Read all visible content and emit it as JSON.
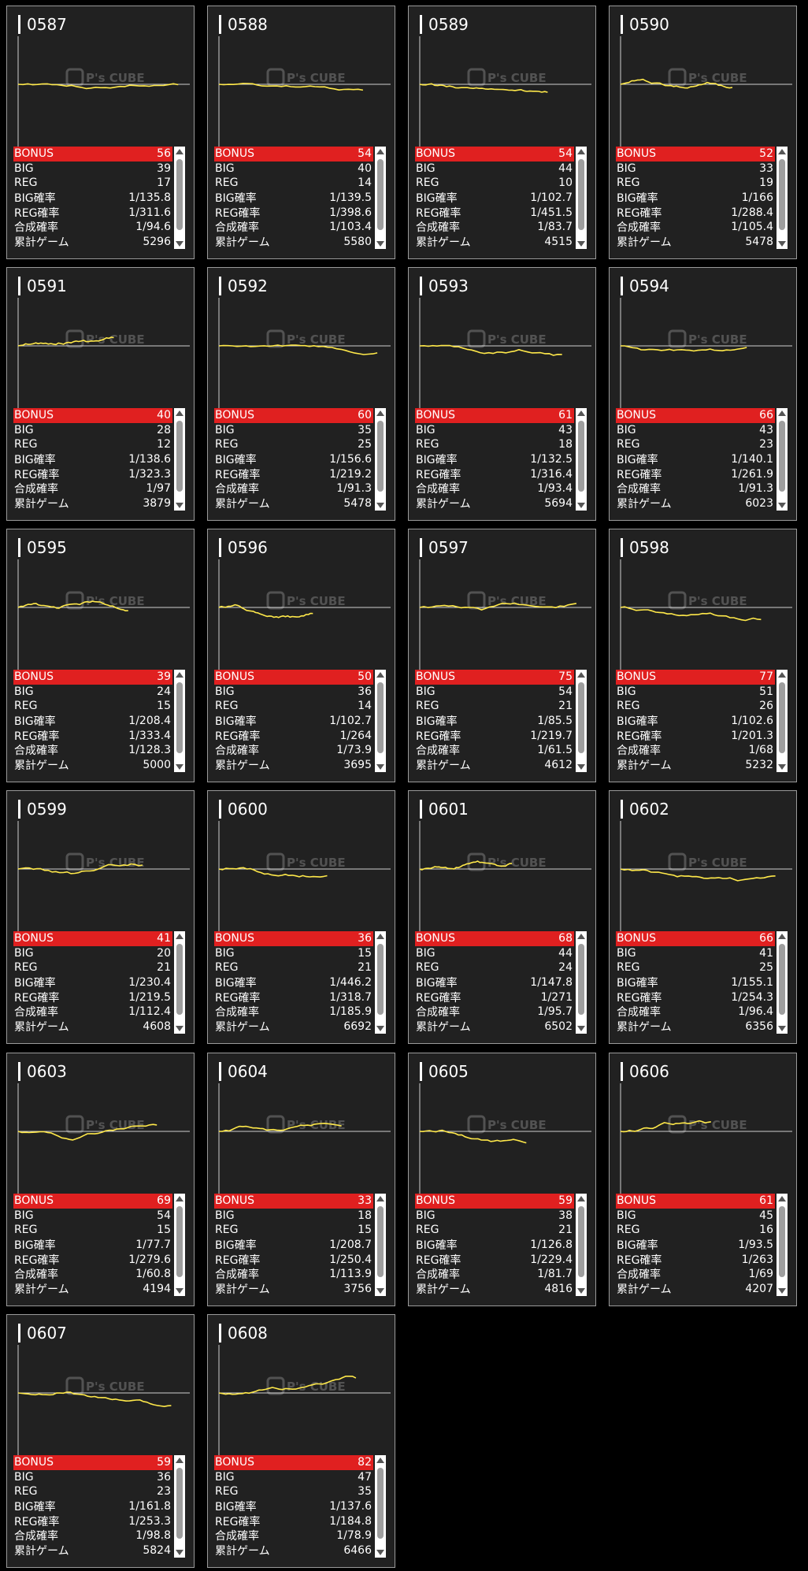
{
  "labels": {
    "bonus": "BONUS",
    "big": "BIG",
    "reg": "REG",
    "big_rate": "BIG確率",
    "reg_rate": "REG確率",
    "combined_rate": "合成確率",
    "total_games": "累計ゲーム"
  },
  "watermark": {
    "brand": "P's CUBE"
  },
  "colors": {
    "accent": "#e02020",
    "graph_line": "#ffe94a",
    "card_bg": "#212121"
  },
  "cards": [
    {
      "no": "0587",
      "bonus": "56",
      "big": "39",
      "reg": "17",
      "big_rate": "1/135.8",
      "reg_rate": "1/311.6",
      "combined_rate": "1/94.6",
      "games": "5296"
    },
    {
      "no": "0588",
      "bonus": "54",
      "big": "40",
      "reg": "14",
      "big_rate": "1/139.5",
      "reg_rate": "1/398.6",
      "combined_rate": "1/103.4",
      "games": "5580"
    },
    {
      "no": "0589",
      "bonus": "54",
      "big": "44",
      "reg": "10",
      "big_rate": "1/102.7",
      "reg_rate": "1/451.5",
      "combined_rate": "1/83.7",
      "games": "4515"
    },
    {
      "no": "0590",
      "bonus": "52",
      "big": "33",
      "reg": "19",
      "big_rate": "1/166",
      "reg_rate": "1/288.4",
      "combined_rate": "1/105.4",
      "games": "5478"
    },
    {
      "no": "0591",
      "bonus": "40",
      "big": "28",
      "reg": "12",
      "big_rate": "1/138.6",
      "reg_rate": "1/323.3",
      "combined_rate": "1/97",
      "games": "3879"
    },
    {
      "no": "0592",
      "bonus": "60",
      "big": "35",
      "reg": "25",
      "big_rate": "1/156.6",
      "reg_rate": "1/219.2",
      "combined_rate": "1/91.3",
      "games": "5478"
    },
    {
      "no": "0593",
      "bonus": "61",
      "big": "43",
      "reg": "18",
      "big_rate": "1/132.5",
      "reg_rate": "1/316.4",
      "combined_rate": "1/93.4",
      "games": "5694"
    },
    {
      "no": "0594",
      "bonus": "66",
      "big": "43",
      "reg": "23",
      "big_rate": "1/140.1",
      "reg_rate": "1/261.9",
      "combined_rate": "1/91.3",
      "games": "6023"
    },
    {
      "no": "0595",
      "bonus": "39",
      "big": "24",
      "reg": "15",
      "big_rate": "1/208.4",
      "reg_rate": "1/333.4",
      "combined_rate": "1/128.3",
      "games": "5000"
    },
    {
      "no": "0596",
      "bonus": "50",
      "big": "36",
      "reg": "14",
      "big_rate": "1/102.7",
      "reg_rate": "1/264",
      "combined_rate": "1/73.9",
      "games": "3695"
    },
    {
      "no": "0597",
      "bonus": "75",
      "big": "54",
      "reg": "21",
      "big_rate": "1/85.5",
      "reg_rate": "1/219.7",
      "combined_rate": "1/61.5",
      "games": "4612"
    },
    {
      "no": "0598",
      "bonus": "77",
      "big": "51",
      "reg": "26",
      "big_rate": "1/102.6",
      "reg_rate": "1/201.3",
      "combined_rate": "1/68",
      "games": "5232"
    },
    {
      "no": "0599",
      "bonus": "41",
      "big": "20",
      "reg": "21",
      "big_rate": "1/230.4",
      "reg_rate": "1/219.5",
      "combined_rate": "1/112.4",
      "games": "4608"
    },
    {
      "no": "0600",
      "bonus": "36",
      "big": "15",
      "reg": "21",
      "big_rate": "1/446.2",
      "reg_rate": "1/318.7",
      "combined_rate": "1/185.9",
      "games": "6692"
    },
    {
      "no": "0601",
      "bonus": "68",
      "big": "44",
      "reg": "24",
      "big_rate": "1/147.8",
      "reg_rate": "1/271",
      "combined_rate": "1/95.7",
      "games": "6502"
    },
    {
      "no": "0602",
      "bonus": "66",
      "big": "41",
      "reg": "25",
      "big_rate": "1/155.1",
      "reg_rate": "1/254.3",
      "combined_rate": "1/96.4",
      "games": "6356"
    },
    {
      "no": "0603",
      "bonus": "69",
      "big": "54",
      "reg": "15",
      "big_rate": "1/77.7",
      "reg_rate": "1/279.6",
      "combined_rate": "1/60.8",
      "games": "4194"
    },
    {
      "no": "0604",
      "bonus": "33",
      "big": "18",
      "reg": "15",
      "big_rate": "1/208.7",
      "reg_rate": "1/250.4",
      "combined_rate": "1/113.9",
      "games": "3756"
    },
    {
      "no": "0605",
      "bonus": "59",
      "big": "38",
      "reg": "21",
      "big_rate": "1/126.8",
      "reg_rate": "1/229.4",
      "combined_rate": "1/81.7",
      "games": "4816"
    },
    {
      "no": "0606",
      "bonus": "61",
      "big": "45",
      "reg": "16",
      "big_rate": "1/93.5",
      "reg_rate": "1/263",
      "combined_rate": "1/69",
      "games": "4207"
    },
    {
      "no": "0607",
      "bonus": "59",
      "big": "36",
      "reg": "23",
      "big_rate": "1/161.8",
      "reg_rate": "1/253.3",
      "combined_rate": "1/98.8",
      "games": "5824"
    },
    {
      "no": "0608",
      "bonus": "82",
      "big": "47",
      "reg": "35",
      "big_rate": "1/137.6",
      "reg_rate": "1/184.8",
      "combined_rate": "1/78.9",
      "games": "6466"
    }
  ]
}
